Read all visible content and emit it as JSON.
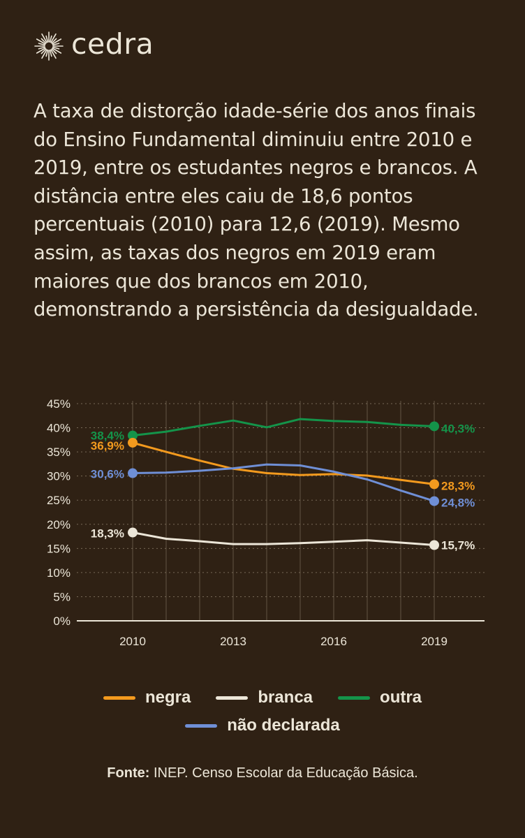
{
  "brand": {
    "name": "cedra",
    "logo_icon": "sun-icon"
  },
  "intro_text": "A taxa de distorção idade-série dos anos finais do Ensino Fundamental diminuiu entre 2010 e 2019, entre os estudantes negros e brancos. A distância entre eles caiu de 18,6 pontos percentuais (2010) para 12,6 (2019). Mesmo assim, as taxas dos negros em 2019 eram maiores que dos brancos em 2010, demonstrando a persistência da desigualdade.",
  "colors": {
    "background": "#2f2114",
    "text": "#ece6d8",
    "negra": "#f39a1e",
    "branca": "#ece6d8",
    "outra": "#14944a",
    "nao_declarada": "#6f8fd6"
  },
  "chart_data": {
    "type": "line",
    "title": "",
    "xlabel": "",
    "ylabel": "",
    "x": [
      2010,
      2011,
      2012,
      2013,
      2014,
      2015,
      2016,
      2017,
      2018,
      2019
    ],
    "x_ticks": [
      2010,
      2013,
      2016,
      2019
    ],
    "y_ticks": [
      "0%",
      "5%",
      "10%",
      "15%",
      "20%",
      "25%",
      "30%",
      "35%",
      "40%",
      "45%"
    ],
    "ylim": [
      0,
      45
    ],
    "grid": true,
    "legend_position": "bottom",
    "series": [
      {
        "name": "negra",
        "key": "negra",
        "values": [
          36.9,
          35.0,
          33.2,
          31.5,
          30.6,
          30.2,
          30.4,
          30.1,
          29.2,
          28.3
        ],
        "labels": {
          "start": "36,9%",
          "end": "28,3%"
        }
      },
      {
        "name": "branca",
        "key": "branca",
        "values": [
          18.3,
          17.0,
          16.5,
          15.9,
          15.9,
          16.1,
          16.4,
          16.7,
          16.2,
          15.7
        ],
        "labels": {
          "start": "18,3%",
          "end": "15,7%"
        }
      },
      {
        "name": "outra",
        "key": "outra",
        "values": [
          38.4,
          39.2,
          40.4,
          41.5,
          40.1,
          41.8,
          41.4,
          41.2,
          40.6,
          40.3
        ],
        "labels": {
          "start": "38,4%",
          "end": "40,3%"
        }
      },
      {
        "name": "não declarada",
        "key": "nao_declarada",
        "values": [
          30.6,
          30.7,
          31.1,
          31.6,
          32.4,
          32.2,
          30.9,
          29.3,
          27.0,
          24.8
        ],
        "labels": {
          "start": "30,6%",
          "end": "24,8%"
        }
      }
    ]
  },
  "legend": {
    "row1": [
      {
        "label": "negra",
        "key": "negra"
      },
      {
        "label": "branca",
        "key": "branca"
      },
      {
        "label": "outra",
        "key": "outra"
      }
    ],
    "row2": [
      {
        "label": "não declarada",
        "key": "nao_declarada"
      }
    ]
  },
  "source": {
    "prefix": "Fonte:",
    "text": "INEP. Censo Escolar da Educação Básica."
  }
}
